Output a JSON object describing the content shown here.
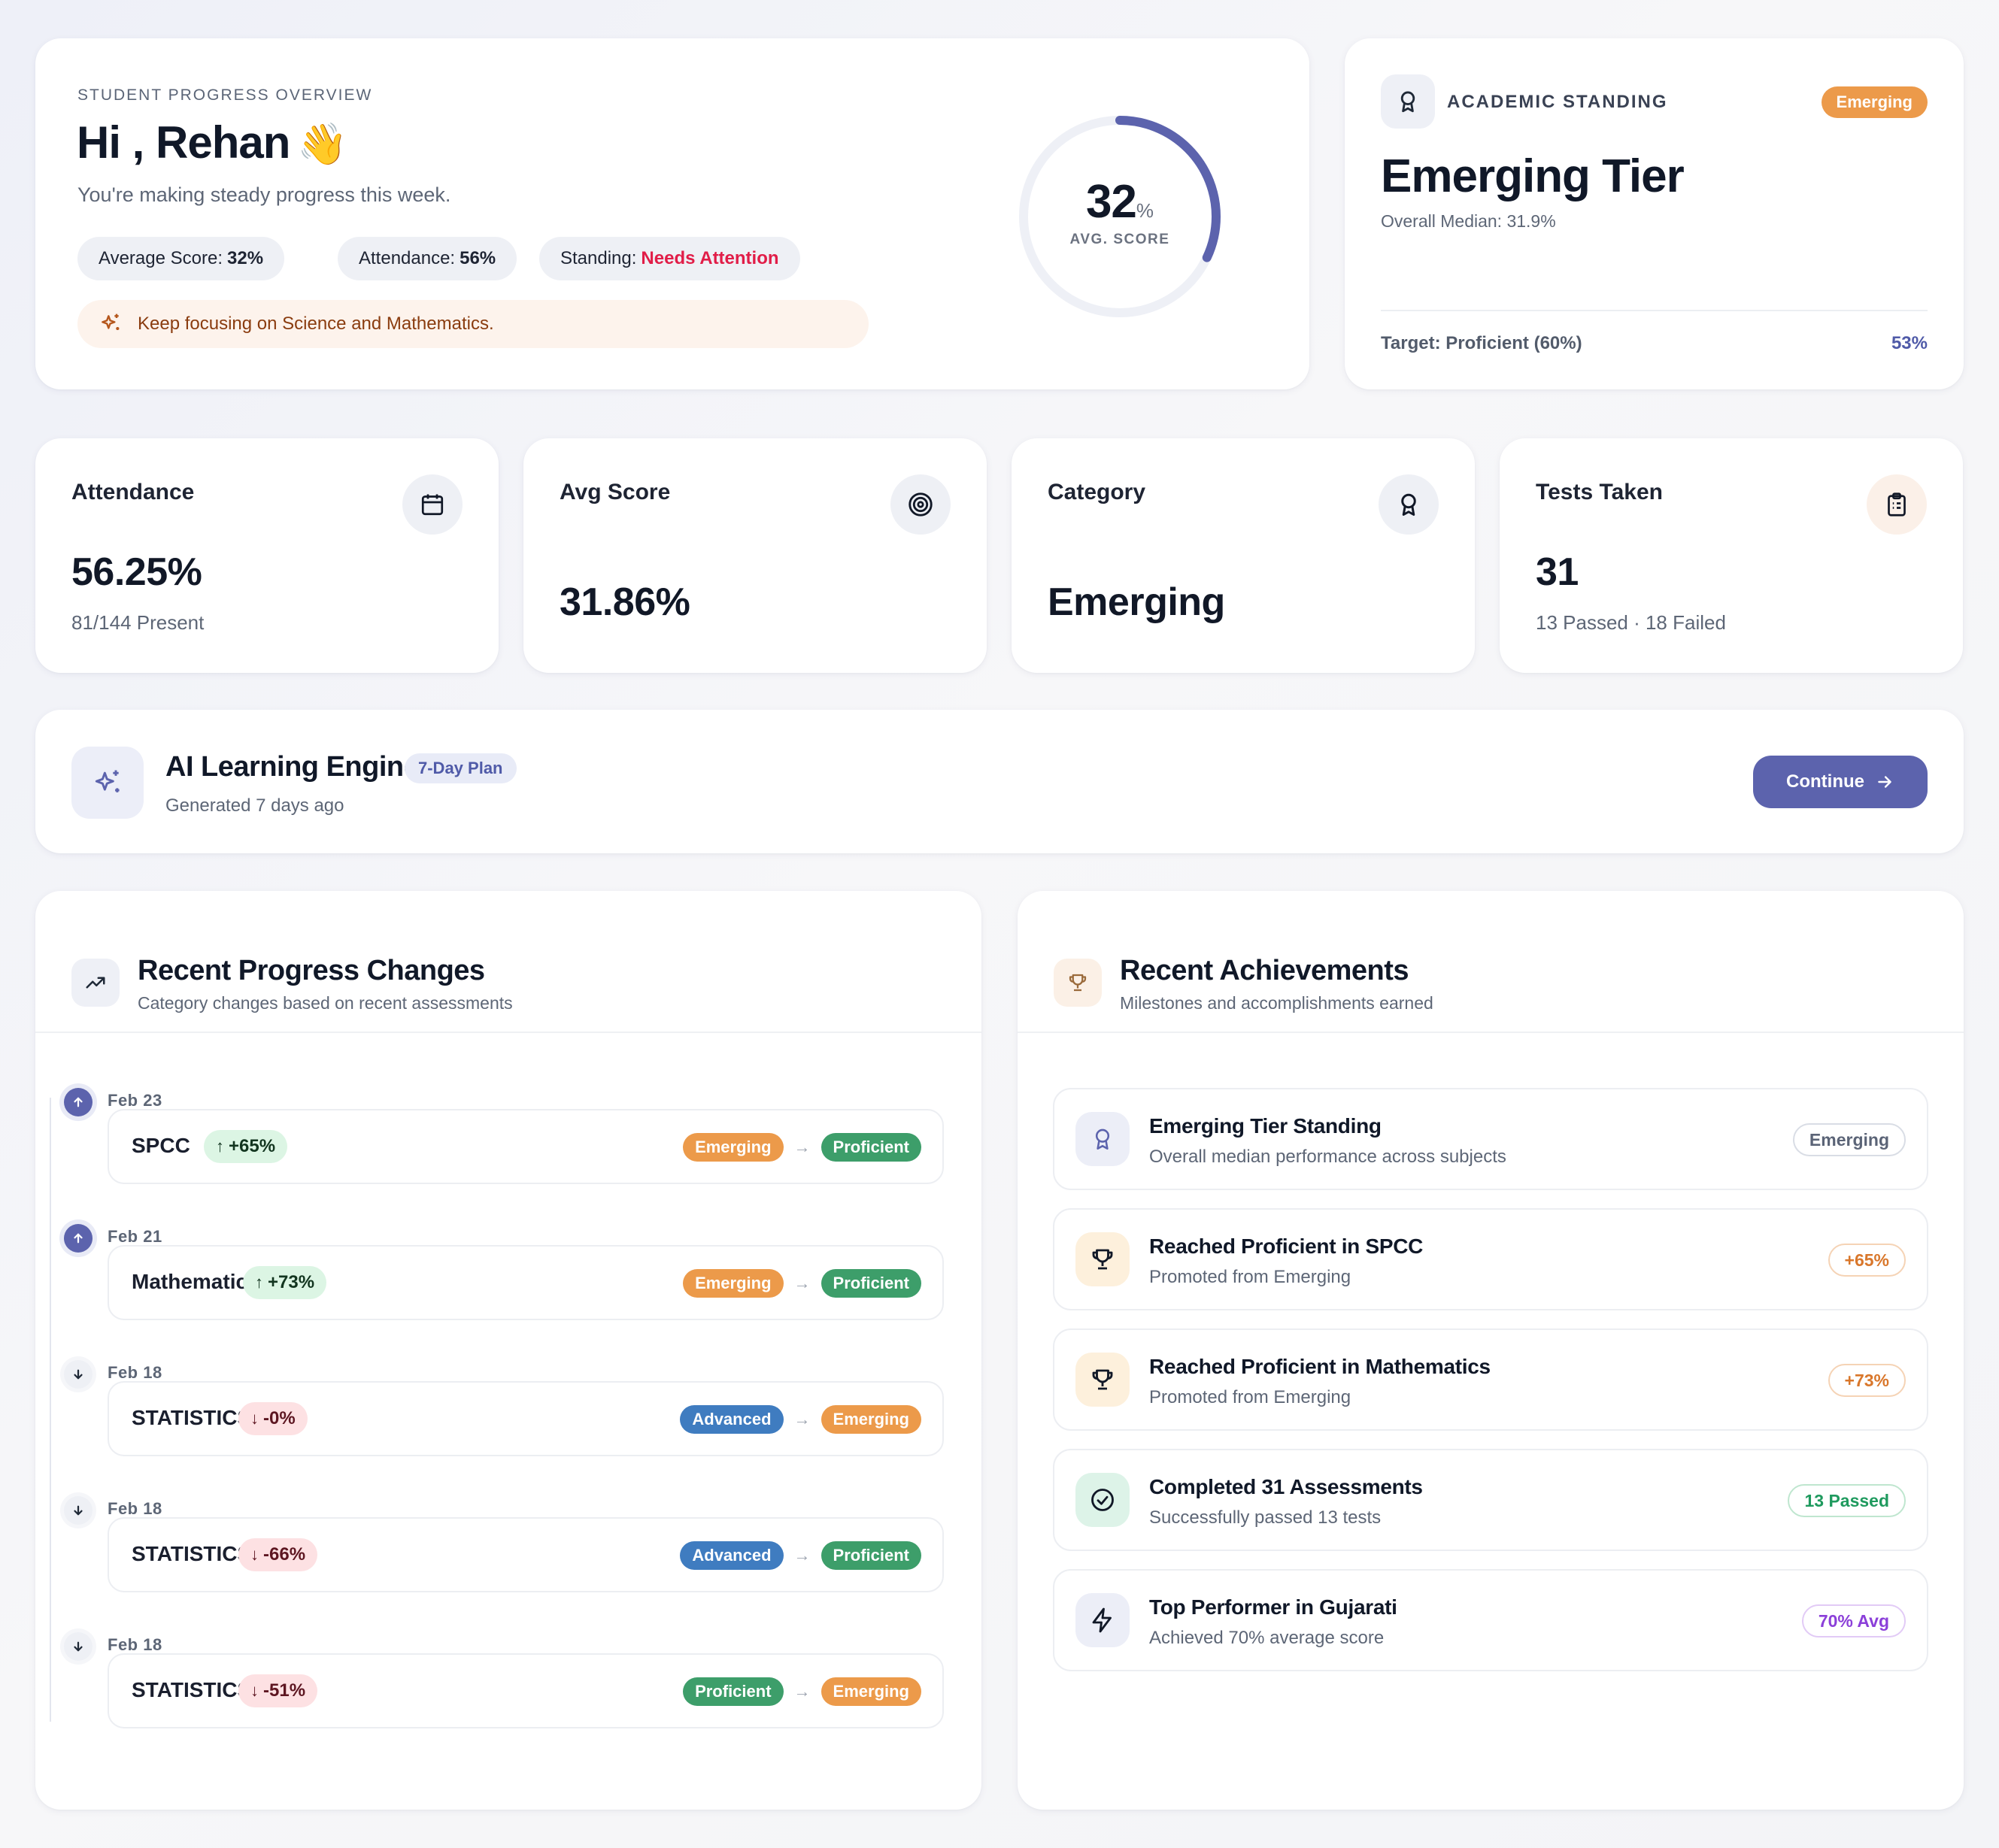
{
  "hero": {
    "overline": "STUDENT PROGRESS OVERVIEW",
    "greeting": "Hi , Rehan",
    "wave": "👋",
    "subtitle": "You're making steady progress this week.",
    "pills": [
      {
        "label": "Average Score:",
        "value": "32%"
      },
      {
        "label": "Attendance:",
        "value": "56%"
      },
      {
        "label": "Standing:",
        "value": "Needs Attention"
      }
    ],
    "tip": "Keep focusing on Science and Mathematics.",
    "ring": {
      "value": "32",
      "unit": "%",
      "label": "AVG. SCORE",
      "fraction": 0.32
    }
  },
  "standing": {
    "label": "ACADEMIC STANDING",
    "badge": "Emerging",
    "tier": "Emerging Tier",
    "median": "Overall Median: 31.9%",
    "target": "Target: Proficient (60%)",
    "target_value": "53%"
  },
  "stats": [
    {
      "title": "Attendance",
      "value": "56.25%",
      "sub": "81/144 Present",
      "icon": "calendar-icon"
    },
    {
      "title": "Avg Score",
      "value": "31.86%",
      "sub": "",
      "icon": "target-icon"
    },
    {
      "title": "Category",
      "value": "Emerging",
      "sub": "",
      "icon": "award-icon"
    },
    {
      "title": "Tests Taken",
      "value": "31",
      "sub": "13 Passed · 18 Failed",
      "icon": "clipboard-icon"
    }
  ],
  "engine": {
    "name": "AI Learning Engine",
    "plan": "7-Day Plan",
    "generated": "Generated 7 days ago",
    "button": "Continue"
  },
  "progress": {
    "title": "Recent Progress Changes",
    "subtitle": "Category changes based on recent assessments",
    "items": [
      {
        "date": "Feb 23",
        "subject": "SPCC",
        "change": "+65%",
        "dir": "up",
        "from": "Emerging",
        "to": "Proficient"
      },
      {
        "date": "Feb 21",
        "subject": "Mathematics",
        "change": "+73%",
        "dir": "up",
        "from": "Emerging",
        "to": "Proficient"
      },
      {
        "date": "Feb 18",
        "subject": "STATISTICS",
        "change": "-0%",
        "dir": "down",
        "from": "Advanced",
        "to": "Emerging"
      },
      {
        "date": "Feb 18",
        "subject": "STATISTICS",
        "change": "-66%",
        "dir": "down",
        "from": "Advanced",
        "to": "Proficient"
      },
      {
        "date": "Feb 18",
        "subject": "STATISTICS",
        "change": "-51%",
        "dir": "down",
        "from": "Proficient",
        "to": "Emerging"
      }
    ]
  },
  "achievements": {
    "title": "Recent Achievements",
    "subtitle": "Milestones and accomplishments earned",
    "items": [
      {
        "title": "Emerging Tier Standing",
        "sub": "Overall median performance across subjects",
        "badge": "Emerging",
        "icon": "award-icon",
        "color": "#5b6477"
      },
      {
        "title": "Reached Proficient in SPCC",
        "sub": "Promoted from Emerging",
        "badge": "+65%",
        "icon": "trophy-icon",
        "color": "#d9772b"
      },
      {
        "title": "Reached Proficient in Mathematics",
        "sub": "Promoted from Emerging",
        "badge": "+73%",
        "icon": "trophy-icon",
        "color": "#d9772b"
      },
      {
        "title": "Completed 31 Assessments",
        "sub": "Successfully passed 13 tests",
        "badge": "13 Passed",
        "icon": "check-circle-icon",
        "color": "#1f9a5e"
      },
      {
        "title": "Top Performer in Gujarati",
        "sub": "Achieved 70% average score",
        "badge": "70% Avg",
        "icon": "zap-icon",
        "color": "#8b3fd9"
      }
    ]
  }
}
